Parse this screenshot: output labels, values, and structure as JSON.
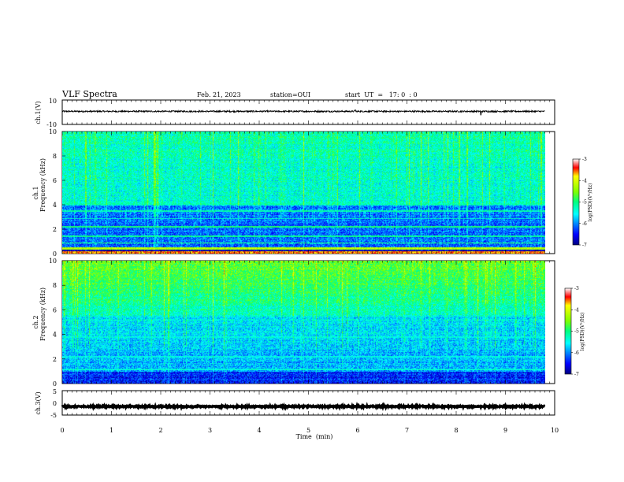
{
  "header": {
    "title": "VLF Spectra",
    "date": "Feb. 21, 2023",
    "station": "station=OUI",
    "start": "start  UT  =   17: 0  : 0"
  },
  "chart_data": [
    {
      "type": "line",
      "panel": "ch1-waveform",
      "ylabel": "ch.1(V)",
      "ylim": [
        -10,
        10
      ],
      "yticks": [
        "10",
        "-10"
      ],
      "series": [
        {
          "x_range_min": [
            0,
            9.8
          ],
          "level": 0.7,
          "noise_amplitude": 0.6,
          "color": "#000000",
          "spikes": [
            {
              "x": 5.95,
              "y": 1.8
            },
            {
              "x": 8.5,
              "y": -2.2
            }
          ]
        }
      ]
    },
    {
      "type": "heatmap",
      "panel": "ch1-spectrogram",
      "ylabel": "ch.1\nFrequency (kHz)",
      "ylabel_lines": [
        "ch.1",
        "Frequency (kHz)"
      ],
      "xlim": [
        0,
        10
      ],
      "ylim": [
        0,
        10
      ],
      "x_data_end": 9.8,
      "yticks": [
        "0",
        "2",
        "4",
        "6",
        "8",
        "10"
      ],
      "colorbar": {
        "label": "log(PSD)(V²/Hz)",
        "range": [
          -7,
          -3
        ],
        "ticks": [
          "-3",
          "-4",
          "-5",
          "-6",
          "-7"
        ]
      },
      "dominant_level": "low (-6 to -7) below 4 kHz with strong narrowband lines near 0.5, 1, 1.5, 2.2, 3.5, 4 kHz; broadband -5 above 4 kHz"
    },
    {
      "type": "heatmap",
      "panel": "ch2-spectrogram",
      "ylabel": "ch.2\nFrequency (kHz)",
      "ylabel_lines": [
        "ch.2",
        "Frequency (kHz)"
      ],
      "xlim": [
        0,
        10
      ],
      "ylim": [
        0,
        10
      ],
      "x_data_end": 9.8,
      "yticks": [
        "0",
        "2",
        "4",
        "6",
        "8",
        "10"
      ],
      "colorbar": {
        "label": "log(PSD)(V²/Hz)",
        "range": [
          -7,
          -3
        ],
        "ticks": [
          "-3",
          "-4",
          "-5",
          "-6",
          "-7"
        ]
      },
      "dominant_level": "higher (-4.5 to -5) above 6 kHz, -6 between 1-5 kHz"
    },
    {
      "type": "line",
      "panel": "ch3-waveform",
      "ylabel": "ch.3(V)",
      "ylim": [
        -5,
        5
      ],
      "yticks": [
        "5",
        "0",
        "-5"
      ],
      "series": [
        {
          "x_range_min": [
            0,
            9.8
          ],
          "level": -1.5,
          "noise_amplitude": 0.25,
          "color": "#000000"
        }
      ]
    }
  ],
  "time_axis": {
    "label": "Time  (min)",
    "ticks": [
      "0",
      "1",
      "2",
      "3",
      "4",
      "5",
      "6",
      "7",
      "8",
      "9",
      "10"
    ]
  }
}
